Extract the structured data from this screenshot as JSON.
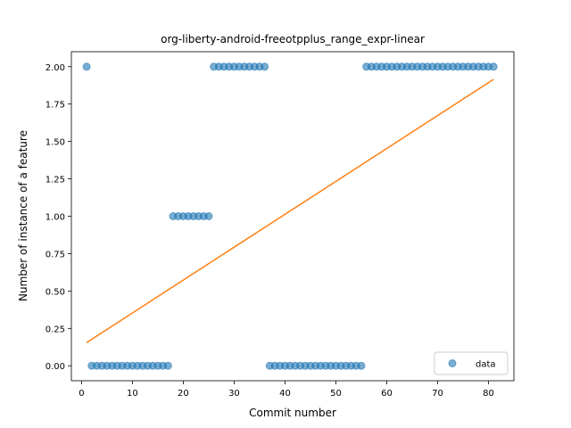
{
  "chart_data": {
    "type": "scatter",
    "title": "org-liberty-android-freeotpplus_range_expr-linear",
    "xlabel": "Commit number",
    "ylabel": "Number of instance of a feature",
    "xlim": [
      -2.0,
      85.0
    ],
    "ylim": [
      -0.1,
      2.1
    ],
    "xticks": [
      0,
      10,
      20,
      30,
      40,
      50,
      60,
      70,
      80
    ],
    "xtick_labels": [
      "0",
      "10",
      "20",
      "30",
      "40",
      "50",
      "60",
      "70",
      "80"
    ],
    "yticks": [
      0.0,
      0.25,
      0.5,
      0.75,
      1.0,
      1.25,
      1.5,
      1.75,
      2.0
    ],
    "ytick_labels": [
      "0.00",
      "0.25",
      "0.50",
      "0.75",
      "1.00",
      "1.25",
      "1.50",
      "1.75",
      "2.00"
    ],
    "grid": false,
    "legend_position": "lower right",
    "series": [
      {
        "name": "data",
        "kind": "scatter",
        "color": "#1f77b4",
        "x": [
          1,
          2,
          3,
          4,
          5,
          6,
          7,
          8,
          9,
          10,
          11,
          12,
          13,
          14,
          15,
          16,
          17,
          18,
          19,
          20,
          21,
          22,
          23,
          24,
          25,
          26,
          27,
          28,
          29,
          30,
          31,
          32,
          33,
          34,
          35,
          36,
          37,
          38,
          39,
          40,
          41,
          42,
          43,
          44,
          45,
          46,
          47,
          48,
          49,
          50,
          51,
          52,
          53,
          54,
          55,
          56,
          57,
          58,
          59,
          60,
          61,
          62,
          63,
          64,
          65,
          66,
          67,
          68,
          69,
          70,
          71,
          72,
          73,
          74,
          75,
          76,
          77,
          78,
          79,
          80,
          81
        ],
        "y": [
          2,
          0,
          0,
          0,
          0,
          0,
          0,
          0,
          0,
          0,
          0,
          0,
          0,
          0,
          0,
          0,
          0,
          1,
          1,
          1,
          1,
          1,
          1,
          1,
          1,
          2,
          2,
          2,
          2,
          2,
          2,
          2,
          2,
          2,
          2,
          2,
          0,
          0,
          0,
          0,
          0,
          0,
          0,
          0,
          0,
          0,
          0,
          0,
          0,
          0,
          0,
          0,
          0,
          0,
          0,
          2,
          2,
          2,
          2,
          2,
          2,
          2,
          2,
          2,
          2,
          2,
          2,
          2,
          2,
          2,
          2,
          2,
          2,
          2,
          2,
          2,
          2,
          2,
          2,
          2,
          2
        ]
      },
      {
        "kind": "line",
        "color": "#ff7f0e",
        "x": [
          1,
          81
        ],
        "y": [
          0.155,
          1.915
        ]
      }
    ]
  }
}
